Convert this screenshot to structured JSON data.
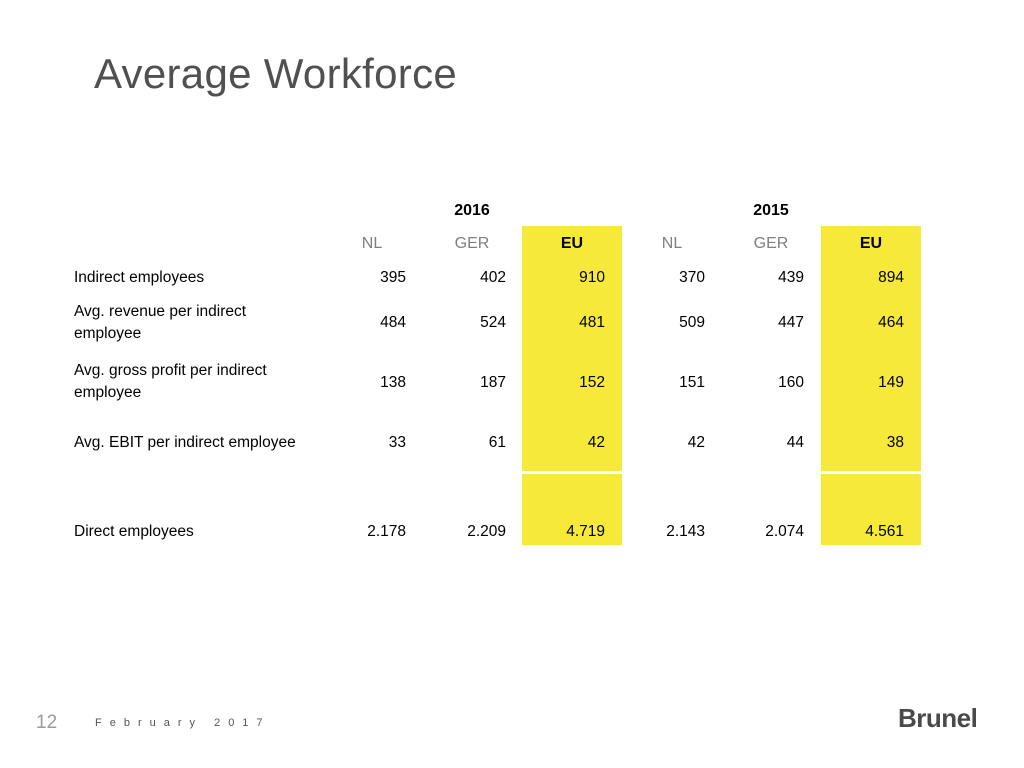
{
  "title": "Average Workforce",
  "years": [
    "2016",
    "2015"
  ],
  "columns": [
    "NL",
    "GER",
    "EU",
    "NL",
    "GER",
    "EU"
  ],
  "rows": [
    {
      "label": "Indirect employees",
      "values": [
        "395",
        "402",
        "910",
        "370",
        "439",
        "894"
      ]
    },
    {
      "label": "Avg. revenue per indirect employee",
      "values": [
        "484",
        "524",
        "481",
        "509",
        "447",
        "464"
      ]
    },
    {
      "label": "Avg. gross profit per indirect employee",
      "values": [
        "138",
        "187",
        "152",
        "151",
        "160",
        "149"
      ]
    },
    {
      "label": "Avg. EBIT per indirect employee",
      "values": [
        "33",
        "61",
        "42",
        "42",
        "44",
        "38"
      ]
    },
    {
      "label": "Direct employees",
      "values": [
        "2.178",
        "2.209",
        "4.719",
        "2.143",
        "2.074",
        "4.561"
      ]
    }
  ],
  "footer": {
    "page": "12",
    "date": "February 2017"
  },
  "logo": "Brunel",
  "colors": {
    "highlight": "#f7e93a",
    "title": "#505050"
  }
}
